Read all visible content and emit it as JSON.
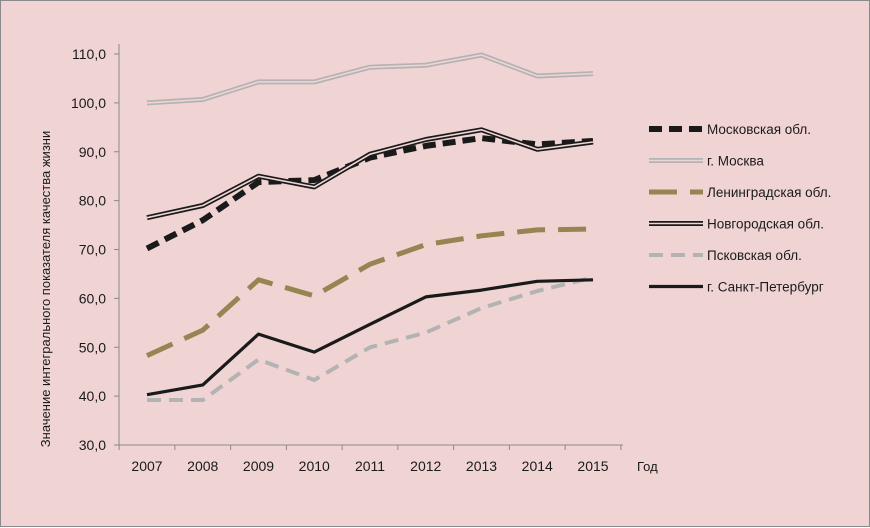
{
  "chart_data": {
    "type": "line",
    "title": "",
    "xlabel": "Год",
    "ylabel": "Значение интегрального показателя  качества жизни",
    "x": [
      "2007",
      "2008",
      "2009",
      "2010",
      "2011",
      "2012",
      "2013",
      "2014",
      "2015"
    ],
    "ylim": [
      30,
      110
    ],
    "yticks": [
      "30,0",
      "40,0",
      "50,0",
      "60,0",
      "70,0",
      "80,0",
      "90,0",
      "100,0",
      "110,0"
    ],
    "grid": false,
    "legend_position": "right",
    "series": [
      {
        "name": "Московская обл.",
        "values": [
          70.2,
          76.0,
          83.8,
          84.2,
          88.8,
          91.2,
          92.8,
          91.5,
          92.2
        ],
        "style": "bold-dashed",
        "color": "#1a1a1a"
      },
      {
        "name": "г. Москва",
        "values": [
          100.0,
          100.7,
          104.3,
          104.3,
          107.3,
          107.7,
          109.8,
          105.5,
          106.0
        ],
        "style": "double",
        "color": "#b3b3b3"
      },
      {
        "name": "Ленинградская обл.",
        "values": [
          48.3,
          53.5,
          63.8,
          60.5,
          67.0,
          71.0,
          72.8,
          74.0,
          74.2
        ],
        "style": "long-dashed",
        "color": "#958553"
      },
      {
        "name": "Новгородская обл.",
        "values": [
          76.5,
          79.0,
          85.0,
          82.8,
          89.5,
          92.5,
          94.5,
          90.5,
          92.0
        ],
        "style": "double",
        "color": "#1a1a1a"
      },
      {
        "name": "Псковская обл.",
        "values": [
          39.2,
          39.2,
          47.5,
          43.3,
          50.0,
          53.0,
          58.0,
          61.5,
          64.3
        ],
        "style": "dashed",
        "color": "#b3b3b3"
      },
      {
        "name": "г. Санкт-Петербург",
        "values": [
          40.3,
          42.3,
          52.7,
          49.0,
          54.7,
          60.3,
          61.7,
          63.5,
          63.8
        ],
        "style": "solid",
        "color": "#1a1a1a"
      }
    ]
  }
}
